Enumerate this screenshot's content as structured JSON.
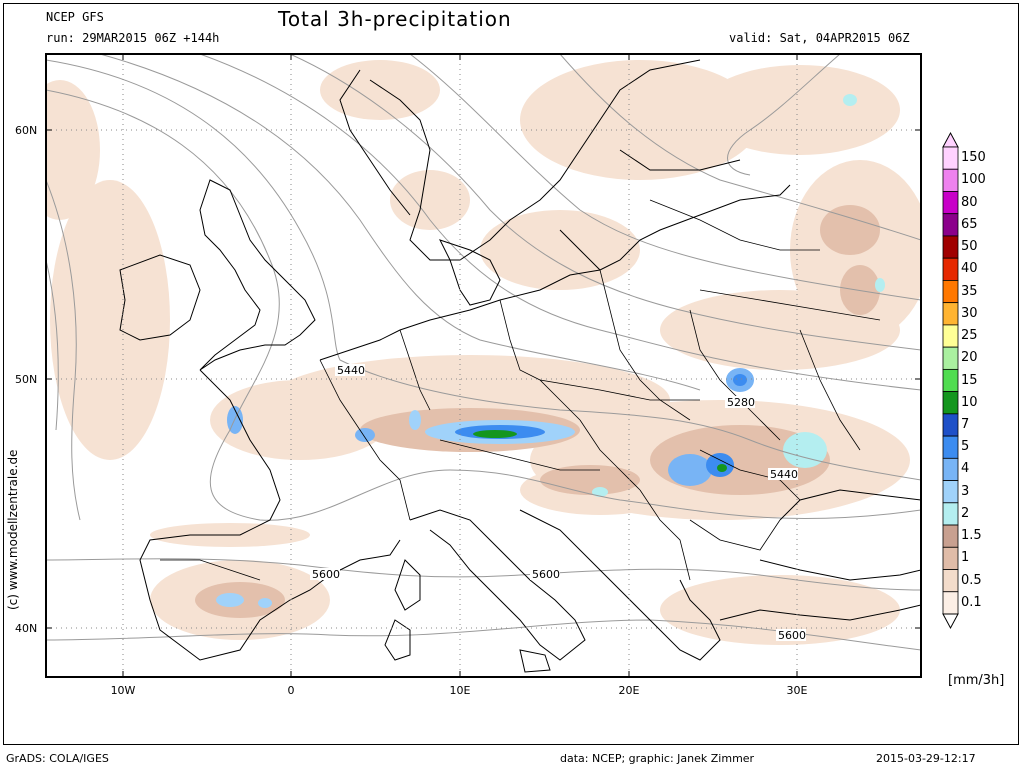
{
  "header": {
    "model": "NCEP GFS",
    "run": "run: 29MAR2015 06Z +144h",
    "title": "Total 3h-precipitation",
    "valid": "valid: Sat, 04APR2015 06Z"
  },
  "footer": {
    "software": "GrADS: COLA/IGES",
    "credit": "data: NCEP; graphic: Janek Zimmer",
    "timestamp": "2015-03-29-12:17"
  },
  "copyright": "(c)  www.modellzentrale.de",
  "axes": {
    "lat_labels": [
      "60N",
      "50N",
      "40N"
    ],
    "lon_labels": [
      "10W",
      "0",
      "10E",
      "20E",
      "30E"
    ]
  },
  "contours": {
    "height_labels": [
      "5440",
      "5280",
      "5440",
      "5600",
      "5600",
      "5600"
    ]
  },
  "legend": {
    "units": "[mm/3h]",
    "levels": [
      {
        "label": "150",
        "color": "#ffd2ff"
      },
      {
        "label": "100",
        "color": "#ee82ee"
      },
      {
        "label": "80",
        "color": "#c800c8"
      },
      {
        "label": "65",
        "color": "#8b008b"
      },
      {
        "label": "50",
        "color": "#a00000"
      },
      {
        "label": "40",
        "color": "#e62800"
      },
      {
        "label": "35",
        "color": "#ff7800"
      },
      {
        "label": "30",
        "color": "#ffb432"
      },
      {
        "label": "25",
        "color": "#ffff96"
      },
      {
        "label": "20",
        "color": "#aaf0a0"
      },
      {
        "label": "15",
        "color": "#50dc50"
      },
      {
        "label": "10",
        "color": "#14961e"
      },
      {
        "label": "7",
        "color": "#1e50c8"
      },
      {
        "label": "5",
        "color": "#3c8cf0"
      },
      {
        "label": "4",
        "color": "#78b4f5"
      },
      {
        "label": "3",
        "color": "#a0d2fa"
      },
      {
        "label": "2",
        "color": "#b4eef0"
      },
      {
        "label": "1.5",
        "color": "#c8a090"
      },
      {
        "label": "1",
        "color": "#e0bca8"
      },
      {
        "label": "0.5",
        "color": "#f3dccb"
      },
      {
        "label": "0.1",
        "color": "#fcefe6"
      }
    ]
  }
}
